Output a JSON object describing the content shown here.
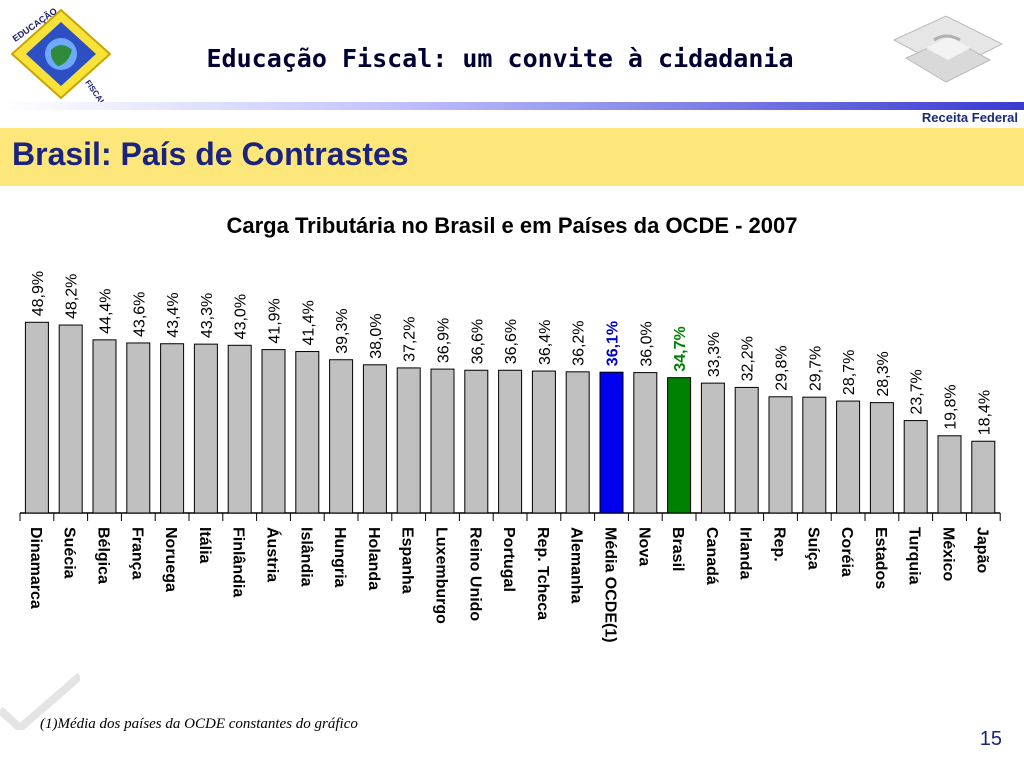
{
  "header": {
    "title": "Educação Fiscal: um convite à cidadania",
    "logo_left_text": "EDUCAÇÃO FISCAL",
    "logo_right_text": "Receita Federal"
  },
  "slide": {
    "title": "Brasil: País de Contrastes",
    "footnote": "(1)Média dos países da OCDE constantes do gráfico",
    "page_number": "15"
  },
  "colors": {
    "bar_default": "#c0c0c0",
    "bar_media": "#0000ee",
    "bar_brasil": "#008000",
    "label_media": "#0000cc",
    "label_brasil": "#008000",
    "title_band": "#fde77a",
    "title_text": "#1a237e"
  },
  "chart_data": {
    "type": "bar",
    "title": "Carga Tributária no Brasil e em Países da OCDE - 2007",
    "xlabel": "",
    "ylabel": "",
    "ylim": [
      0,
      50
    ],
    "grid": false,
    "categories": [
      "Dinamarca",
      "Suécia",
      "Bélgica",
      "França",
      "Noruega",
      "Itália",
      "Finlândia",
      "Áustria",
      "Islândia",
      "Hungria",
      "Holanda",
      "Espanha",
      "Luxemburgo",
      "Reino Unido",
      "Portugal",
      "Rep. Tcheca",
      "Alemanha",
      "Média OCDE(1)",
      "Nova",
      "Brasil",
      "Canadá",
      "Irlanda",
      "Rep.",
      "Suíça",
      "Coréia",
      "Estados",
      "Turquia",
      "México",
      "Japão"
    ],
    "values": [
      48.9,
      48.2,
      44.4,
      43.6,
      43.4,
      43.3,
      43.0,
      41.9,
      41.4,
      39.3,
      38.0,
      37.2,
      36.9,
      36.6,
      36.6,
      36.4,
      36.2,
      36.1,
      36.0,
      34.7,
      33.3,
      32.2,
      29.8,
      29.7,
      28.7,
      28.3,
      23.7,
      19.8,
      18.4
    ],
    "value_labels": [
      "48,9%",
      "48,2%",
      "44,4%",
      "43,6%",
      "43,4%",
      "43,3%",
      "43,0%",
      "41,9%",
      "41,4%",
      "39,3%",
      "38,0%",
      "37,2%",
      "36,9%",
      "36,6%",
      "36,6%",
      "36,4%",
      "36,2%",
      "36,1%",
      "36,0%",
      "34,7%",
      "33,3%",
      "32,2%",
      "29,8%",
      "29,7%",
      "28,7%",
      "28,3%",
      "23,7%",
      "19,8%",
      "18,4%"
    ],
    "highlight": {
      "Média OCDE(1)": "bar_media",
      "Brasil": "bar_brasil"
    }
  }
}
